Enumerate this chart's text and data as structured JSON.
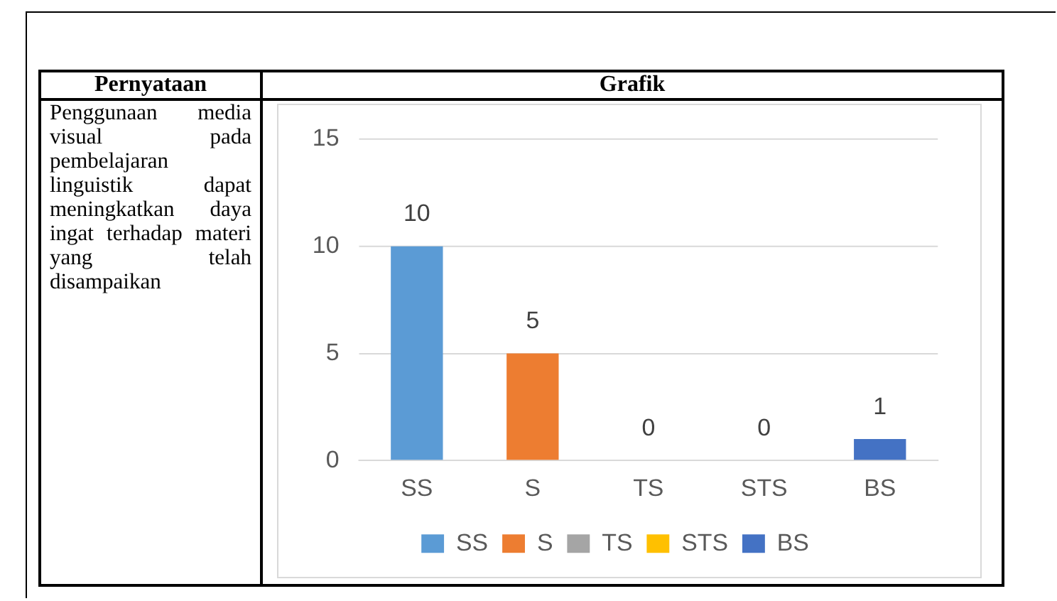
{
  "chart_data": {
    "type": "bar",
    "annotations": [
      "Pernyataan",
      "Grafik",
      "Penggunaan media visual pada pembelajaran linguistik dapat meningkatkan daya ingat terhadap materi yang telah disampaikan"
    ],
    "categories": [
      "SS",
      "S",
      "TS",
      "STS",
      "BS"
    ],
    "series": [
      {
        "name": "SS",
        "color": "#5b9bd5",
        "values": [
          10,
          null,
          null,
          null,
          null
        ]
      },
      {
        "name": "S",
        "color": "#ed7d31",
        "values": [
          null,
          5,
          null,
          null,
          null
        ]
      },
      {
        "name": "TS",
        "color": "#a5a5a5",
        "values": [
          null,
          null,
          0,
          null,
          null
        ]
      },
      {
        "name": "STS",
        "color": "#ffc000",
        "values": [
          null,
          null,
          null,
          0,
          null
        ]
      },
      {
        "name": "BS",
        "color": "#4472c4",
        "values": [
          null,
          null,
          null,
          null,
          1
        ]
      }
    ],
    "ylim": [
      0,
      15
    ],
    "yticks": [
      0,
      5,
      10,
      15
    ],
    "grid": "y",
    "legend": "bottom",
    "data_labels": true
  }
}
